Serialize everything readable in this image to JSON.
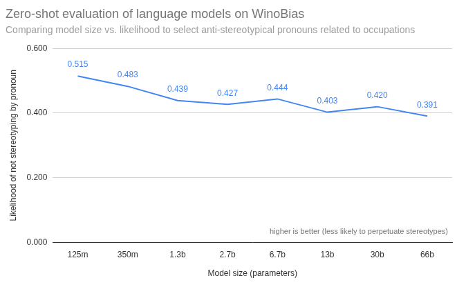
{
  "chart_data": {
    "type": "line",
    "title": "Zero-shot evaluation of language models on WinoBias",
    "subtitle": "Comparing model size vs. likelihood to select anti-stereotypical pronouns related to occupations",
    "x_label": "Model size (parameters)",
    "y_label": "Likelihood of not stereotyping by pronoun",
    "annotation": "higher is better (less likely to perpetuate stereotypes)",
    "categories": [
      "125m",
      "350m",
      "1.3b",
      "2.7b",
      "6.7b",
      "13b",
      "30b",
      "66b"
    ],
    "values": [
      0.515,
      0.483,
      0.439,
      0.427,
      0.444,
      0.403,
      0.42,
      0.391
    ],
    "value_labels": [
      "0.515",
      "0.483",
      "0.439",
      "0.427",
      "0.444",
      "0.403",
      "0.420",
      "0.391"
    ],
    "color": "#4285f4",
    "ylim": [
      0,
      0.6
    ],
    "yticks": [
      {
        "value": 0,
        "label": "0.000"
      },
      {
        "value": 0.2,
        "label": "0.200"
      },
      {
        "value": 0.4,
        "label": "0.400"
      },
      {
        "value": 0.6,
        "label": "0.600"
      }
    ],
    "grid": true,
    "data_labels": true
  }
}
